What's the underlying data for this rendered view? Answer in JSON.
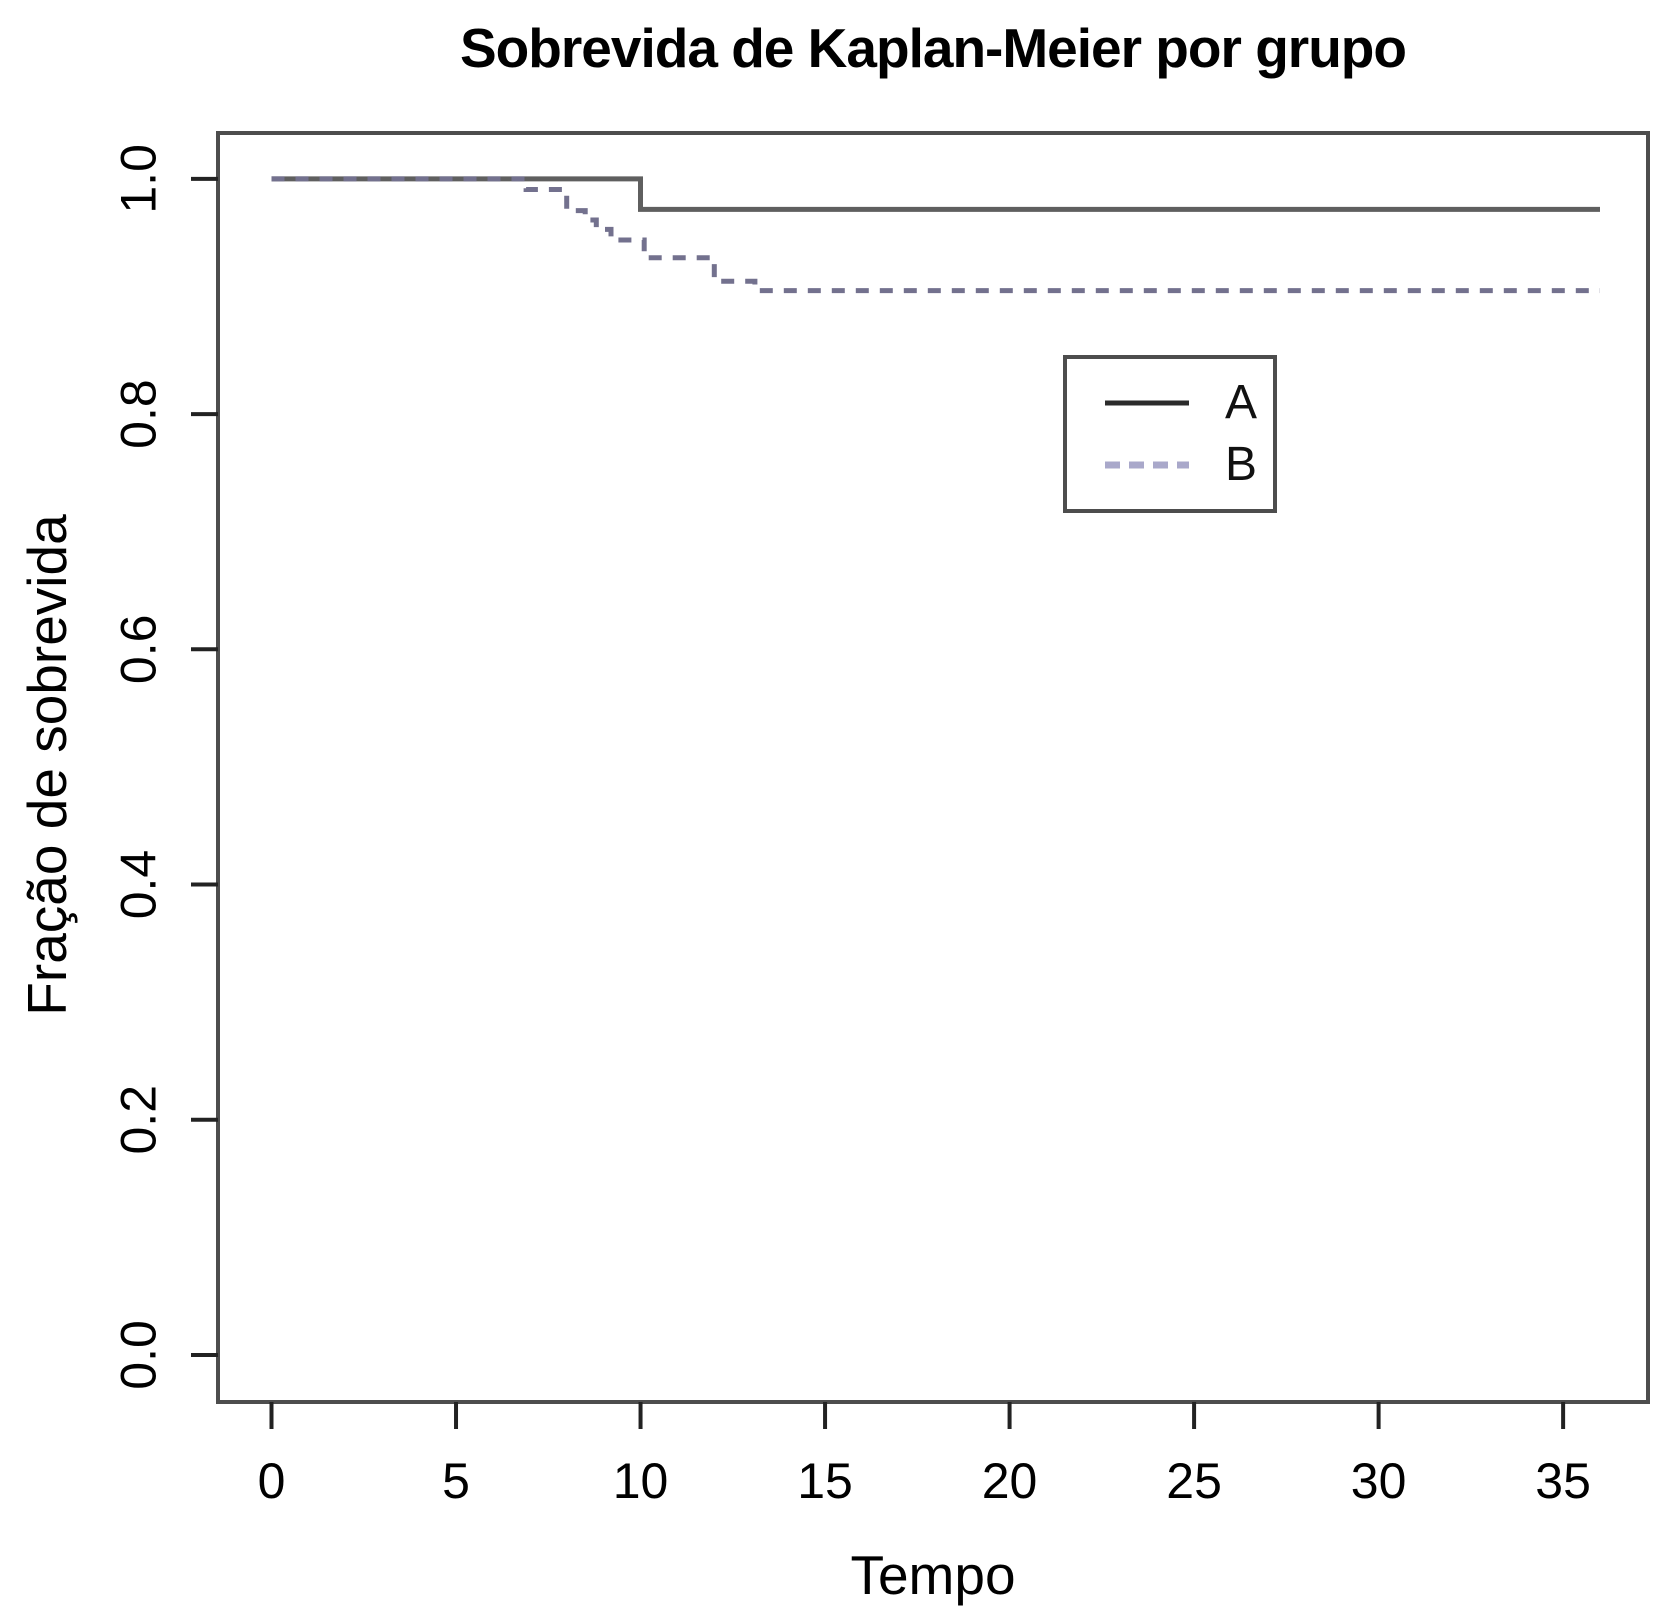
{
  "chart_data": {
    "type": "line",
    "subtype": "kaplan-meier-step",
    "title": "Sobrevida de Kaplan-Meier por grupo",
    "xlabel": "Tempo",
    "ylabel": "Fração de sobrevida",
    "xlim": [
      -1.45,
      37.3
    ],
    "ylim": [
      -0.04,
      1.039
    ],
    "xticks": [
      "0",
      "5",
      "10",
      "15",
      "20",
      "25",
      "30",
      "35"
    ],
    "yticks": [
      "0.0",
      "0.2",
      "0.4",
      "0.6",
      "0.8",
      "1.0"
    ],
    "grid": false,
    "axis_color": "#4d4d4d",
    "tick_color": "#222222",
    "text_color": "#000000",
    "legend": {
      "position": "upper-right-inside",
      "entries": [
        {
          "label": "A",
          "style": "solid",
          "color": "#2b2b2b"
        },
        {
          "label": "B",
          "style": "dashed",
          "color": "#a9a8ca"
        }
      ]
    },
    "series": [
      {
        "name": "A",
        "style": "solid",
        "color": "#5f5f5f",
        "step_points": [
          [
            0,
            1.0
          ],
          [
            10,
            0.974
          ],
          [
            36,
            0.974
          ]
        ]
      },
      {
        "name": "B",
        "style": "dashed",
        "color": "#73718e",
        "step_points": [
          [
            0,
            1.0
          ],
          [
            6.9,
            0.991
          ],
          [
            8.0,
            0.973
          ],
          [
            8.5,
            0.965
          ],
          [
            8.8,
            0.957
          ],
          [
            9.2,
            0.948
          ],
          [
            10.1,
            0.933
          ],
          [
            12.0,
            0.913
          ],
          [
            13.1,
            0.905
          ],
          [
            36,
            0.905
          ]
        ]
      }
    ]
  }
}
